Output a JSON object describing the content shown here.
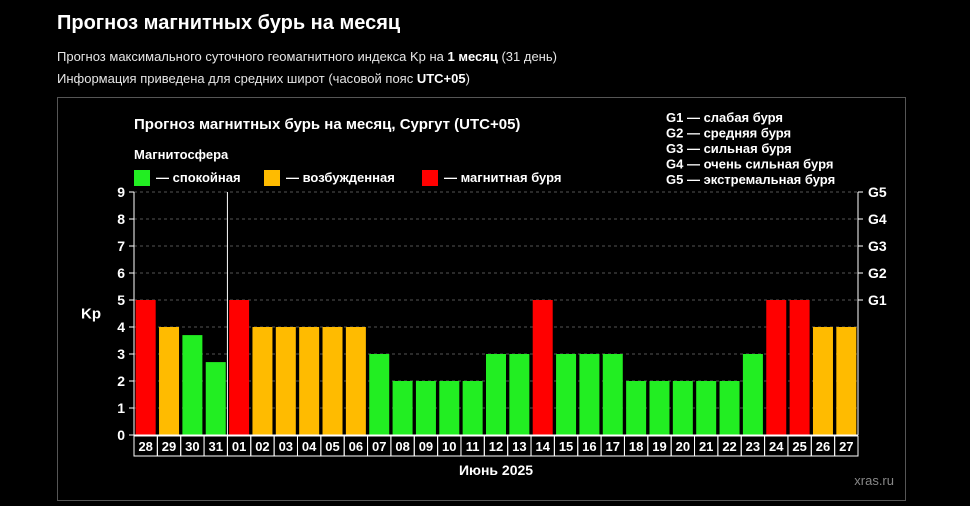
{
  "page": {
    "title": "Прогноз магнитных бурь на месяц",
    "line1_pre": "Прогноз максимального суточного геомагнитного индекса Kp на ",
    "line1_bold": "1 месяц",
    "line1_post": " (31 день)",
    "line2_pre": "Информация приведена для средних широт (часовой пояс ",
    "line2_bold": "UTC+05",
    "line2_post": ")"
  },
  "chart_data": {
    "type": "bar",
    "title": "Прогноз магнитных бурь на месяц, Сургут (UTC+05)",
    "legend_title": "Магнитосфера",
    "legend": [
      {
        "label": "— спокойная",
        "color": "#22ee22"
      },
      {
        "label": "— возбужденная",
        "color": "#ffbb00"
      },
      {
        "label": "— магнитная буря",
        "color": "#ff0000"
      }
    ],
    "storm_levels": [
      "G1 — слабая буря",
      "G2 — средняя буря",
      "G3 — сильная буря",
      "G4 — очень сильная буря",
      "G5 — экстремальная буря"
    ],
    "ylabel": "Kp",
    "xlabel": "Июнь 2025",
    "ylim": [
      0,
      9
    ],
    "yticks": [
      0,
      1,
      2,
      3,
      4,
      5,
      6,
      7,
      8,
      9
    ],
    "right_ticks": [
      {
        "value": 5,
        "label": "G1"
      },
      {
        "value": 6,
        "label": "G2"
      },
      {
        "value": 7,
        "label": "G3"
      },
      {
        "value": 8,
        "label": "G4"
      },
      {
        "value": 9,
        "label": "G5"
      }
    ],
    "grid": true,
    "month_divider_after_index": 3,
    "categories": [
      "28",
      "29",
      "30",
      "31",
      "01",
      "02",
      "03",
      "04",
      "05",
      "06",
      "07",
      "08",
      "09",
      "10",
      "11",
      "12",
      "13",
      "14",
      "15",
      "16",
      "17",
      "18",
      "19",
      "20",
      "21",
      "22",
      "23",
      "24",
      "25",
      "26",
      "27"
    ],
    "values": [
      5,
      4,
      3.7,
      2.7,
      5,
      4,
      4,
      4,
      4,
      4,
      3,
      2,
      2,
      2,
      2,
      3,
      3,
      5,
      3,
      3,
      3,
      2,
      2,
      2,
      2,
      2,
      3,
      5,
      5,
      4,
      4
    ],
    "bar_colors": [
      "#ff0000",
      "#ffbb00",
      "#22ee22",
      "#22ee22",
      "#ff0000",
      "#ffbb00",
      "#ffbb00",
      "#ffbb00",
      "#ffbb00",
      "#ffbb00",
      "#22ee22",
      "#22ee22",
      "#22ee22",
      "#22ee22",
      "#22ee22",
      "#22ee22",
      "#22ee22",
      "#ff0000",
      "#22ee22",
      "#22ee22",
      "#22ee22",
      "#22ee22",
      "#22ee22",
      "#22ee22",
      "#22ee22",
      "#22ee22",
      "#22ee22",
      "#ff0000",
      "#ff0000",
      "#ffbb00",
      "#ffbb00"
    ]
  },
  "watermark": "xras.ru"
}
